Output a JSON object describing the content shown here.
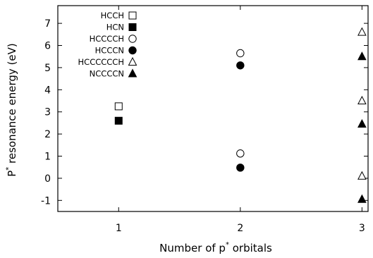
{
  "chart_data": {
    "type": "scatter",
    "title": "",
    "xlabel_parts": [
      "Number of p",
      "*",
      " orbitals"
    ],
    "ylabel_parts": [
      "P",
      "*",
      " resonance energy (eV)"
    ],
    "xlim": [
      0.5,
      3.05
    ],
    "ylim": [
      -1.5,
      7.8
    ],
    "xticks": [
      1,
      2,
      3
    ],
    "yticks": [
      -1,
      0,
      1,
      2,
      3,
      4,
      5,
      6,
      7
    ],
    "grid": false,
    "legend_position": "top-left",
    "series": [
      {
        "name": "HCCH",
        "marker": "square",
        "filled": false,
        "x": [
          1
        ],
        "y": [
          3.25
        ]
      },
      {
        "name": "HCN",
        "marker": "square",
        "filled": true,
        "x": [
          1
        ],
        "y": [
          2.6
        ]
      },
      {
        "name": "HCCCCH",
        "marker": "circle",
        "filled": false,
        "x": [
          2,
          2
        ],
        "y": [
          5.65,
          1.12
        ]
      },
      {
        "name": "HCCCN",
        "marker": "circle",
        "filled": true,
        "x": [
          2,
          2
        ],
        "y": [
          5.1,
          0.48
        ]
      },
      {
        "name": "HCCCCCCH",
        "marker": "triangle",
        "filled": false,
        "x": [
          3,
          3,
          3
        ],
        "y": [
          6.6,
          3.5,
          0.1
        ]
      },
      {
        "name": "NCCCCN",
        "marker": "triangle",
        "filled": true,
        "x": [
          3,
          3,
          3
        ],
        "y": [
          5.5,
          2.45,
          -0.95
        ]
      }
    ]
  }
}
